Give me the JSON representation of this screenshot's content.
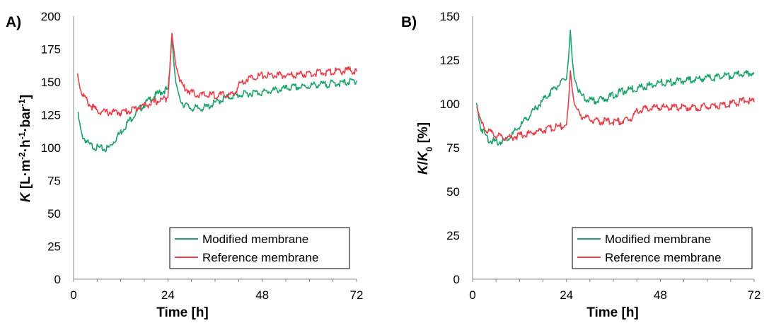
{
  "colors": {
    "modified": "#1aa36a",
    "reference": "#e8414a"
  },
  "chart_data": [
    {
      "type": "line",
      "panel_label": "A)",
      "xlabel": "Time [h]",
      "ylabel_italic": "K",
      "ylabel_rest": " [L·m",
      "ylabel_sup1": "-2",
      "ylabel_mid1": "·h",
      "ylabel_sup2": "-1",
      "ylabel_mid2": "·bar",
      "ylabel_sup3": "-1",
      "ylabel_end": "]",
      "xlim": [
        0,
        72
      ],
      "ylim": [
        0,
        200
      ],
      "xticks": [
        "0",
        "24",
        "48",
        "72"
      ],
      "yticks": [
        "0",
        "25",
        "50",
        "75",
        "100",
        "125",
        "150",
        "175",
        "200"
      ],
      "legend": [
        "Modified membrane",
        "Reference membrane"
      ],
      "series": [
        {
          "name": "Modified membrane",
          "x": [
            1,
            2,
            4,
            6,
            8,
            9,
            10,
            12,
            14,
            16,
            18,
            20,
            22,
            24,
            24.5,
            25,
            25.5,
            26,
            27,
            28,
            30,
            32,
            34,
            36,
            38,
            40,
            42,
            44,
            46,
            48,
            50,
            52,
            54,
            56,
            58,
            60,
            62,
            64,
            66,
            68,
            70,
            72
          ],
          "y": [
            127,
            110,
            102,
            100,
            99,
            100,
            104,
            112,
            120,
            127,
            133,
            138,
            142,
            145,
            160,
            185,
            165,
            150,
            138,
            133,
            130,
            130,
            131,
            134,
            137,
            139,
            140,
            141,
            142,
            142,
            143,
            144,
            145,
            146,
            146,
            147,
            148,
            148,
            149,
            149,
            150,
            151
          ]
        },
        {
          "name": "Reference membrane",
          "x": [
            1,
            2,
            4,
            6,
            8,
            10,
            12,
            14,
            16,
            18,
            20,
            22,
            24,
            24.5,
            25,
            25.5,
            26,
            27,
            28,
            30,
            32,
            34,
            36,
            38,
            40,
            41,
            42,
            44,
            46,
            48,
            50,
            52,
            54,
            56,
            58,
            60,
            62,
            64,
            66,
            68,
            70,
            72
          ],
          "y": [
            156,
            142,
            133,
            128,
            127,
            127,
            127,
            128,
            130,
            132,
            134,
            136,
            138,
            160,
            187,
            175,
            163,
            152,
            146,
            142,
            140,
            140,
            140,
            140,
            140,
            141,
            148,
            152,
            154,
            155,
            155,
            155,
            155,
            155,
            156,
            156,
            157,
            157,
            158,
            158,
            159,
            158
          ]
        }
      ]
    },
    {
      "type": "line",
      "panel_label": "B)",
      "xlabel": "Time [h]",
      "ylabel_italic": "K",
      "ylabel_rest": "/",
      "ylabel_italic2": "K",
      "ylabel_sub": "0",
      "ylabel_end": " [%]",
      "xlim": [
        0,
        72
      ],
      "ylim": [
        0,
        150
      ],
      "xticks": [
        "0",
        "24",
        "48",
        "72"
      ],
      "yticks": [
        "0",
        "25",
        "50",
        "75",
        "100",
        "125",
        "150"
      ],
      "legend": [
        "Modified membrane",
        "Reference membrane"
      ],
      "series": [
        {
          "name": "Modified membrane",
          "x": [
            1,
            2,
            4,
            6,
            8,
            10,
            12,
            14,
            16,
            18,
            20,
            22,
            24,
            24.5,
            25,
            25.5,
            26,
            27,
            28,
            30,
            32,
            34,
            36,
            38,
            40,
            42,
            44,
            46,
            48,
            50,
            52,
            54,
            56,
            58,
            60,
            62,
            64,
            66,
            68,
            70,
            72
          ],
          "y": [
            100,
            87,
            80,
            78,
            79,
            82,
            87,
            92,
            97,
            102,
            107,
            111,
            114,
            125,
            142,
            125,
            115,
            108,
            104,
            102,
            102,
            103,
            105,
            107,
            108,
            109,
            110,
            111,
            112,
            112,
            113,
            113,
            114,
            114,
            115,
            115,
            116,
            116,
            117,
            117,
            118
          ]
        },
        {
          "name": "Reference membrane",
          "x": [
            1,
            2,
            4,
            6,
            8,
            10,
            12,
            14,
            16,
            18,
            20,
            22,
            24,
            24.5,
            25,
            25.5,
            26,
            27,
            28,
            30,
            32,
            34,
            36,
            38,
            40,
            41,
            42,
            44,
            46,
            48,
            50,
            52,
            54,
            56,
            58,
            60,
            62,
            64,
            66,
            68,
            70,
            72
          ],
          "y": [
            100,
            90,
            84,
            82,
            81,
            81,
            82,
            83,
            84,
            85,
            86,
            87,
            88,
            100,
            119,
            108,
            100,
            96,
            93,
            91,
            90,
            90,
            90,
            90,
            91,
            93,
            96,
            97,
            98,
            98,
            98,
            98,
            98,
            98,
            98,
            99,
            99,
            99,
            100,
            101,
            102,
            101
          ]
        }
      ]
    }
  ]
}
